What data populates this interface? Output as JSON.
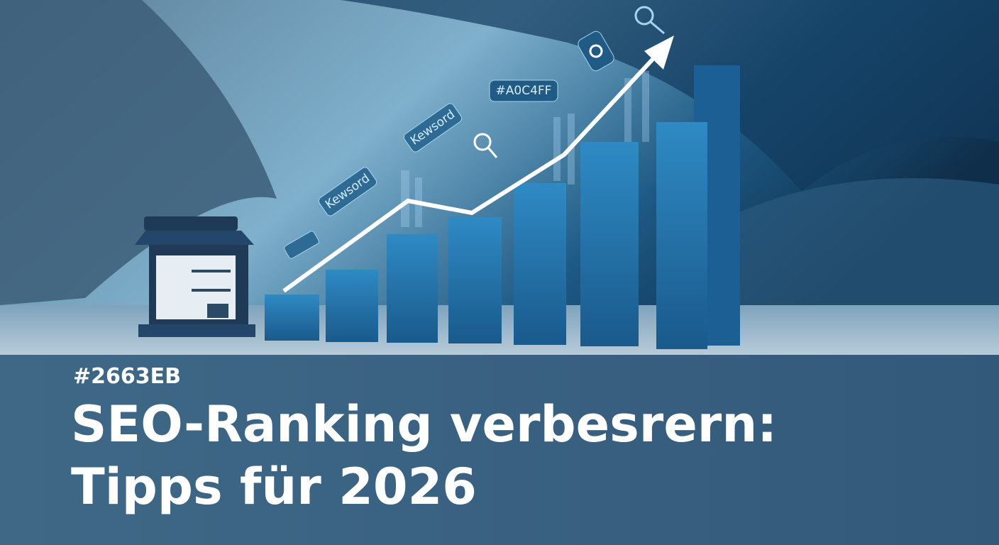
{
  "hero": {
    "tags": [
      "Kewsord",
      "Kewsord",
      "#A0C4FF"
    ]
  },
  "caption": {
    "label": "#2663EB",
    "title_lines": [
      "SEO-Ranking verbesrern:",
      "Tipps für 2026"
    ]
  }
}
